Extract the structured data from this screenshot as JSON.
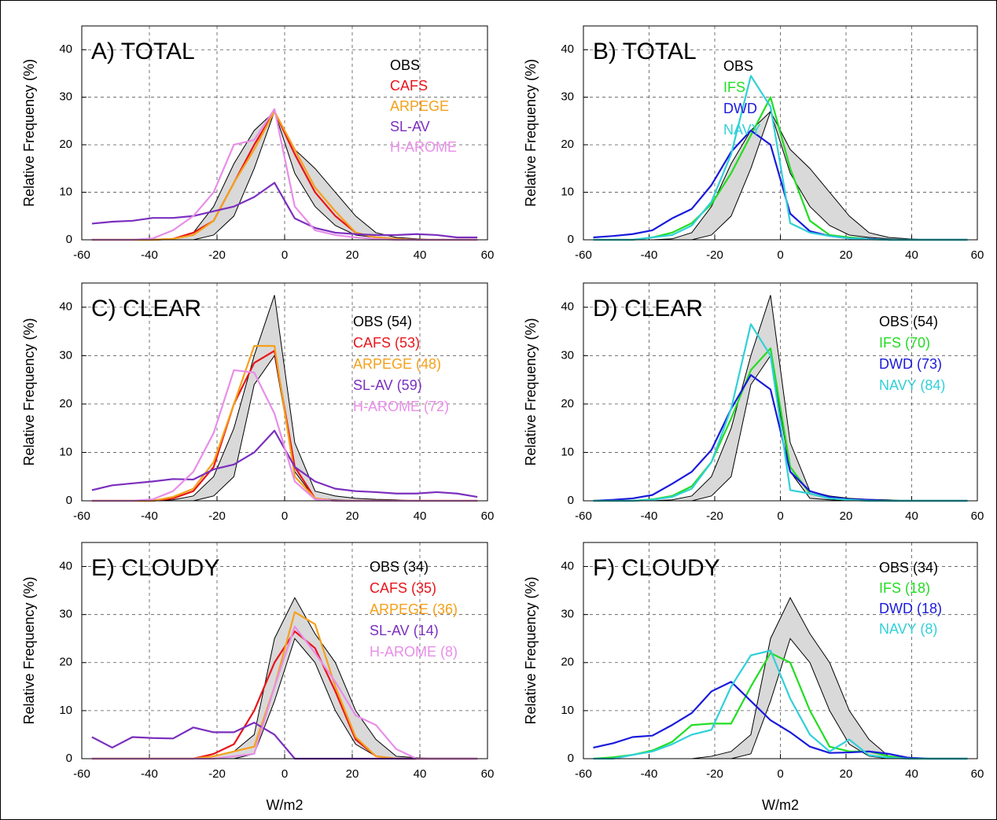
{
  "chart_data": [
    {
      "type": "line",
      "title": "A) TOTAL",
      "ylabel": "Relative Frequency (%)",
      "x": [
        -57,
        -51,
        -45,
        -39,
        -33,
        -27,
        -21,
        -15,
        -9,
        -3,
        3,
        9,
        15,
        21,
        27,
        33,
        39,
        45,
        51,
        57
      ],
      "xlim": [
        -60,
        60
      ],
      "xticks": [
        -60,
        -40,
        -20,
        0,
        20,
        40,
        60
      ],
      "ylim": [
        0,
        45
      ],
      "yticks": [
        0,
        10,
        20,
        30,
        40
      ],
      "grid": true,
      "series": [
        {
          "name": "OBS",
          "color": "#000000",
          "fill": "#d9d9d9",
          "low": [
            0,
            0,
            0,
            0,
            0,
            0,
            1,
            5,
            15,
            27,
            14,
            7,
            3,
            1,
            0.5,
            0.2,
            0,
            0,
            0,
            0
          ],
          "high": [
            0,
            0,
            0,
            0,
            0.2,
            1.5,
            7,
            16,
            23,
            27,
            19,
            15,
            10,
            5,
            1.5,
            0.5,
            0.2,
            0,
            0,
            0
          ]
        },
        {
          "name": "CAFS",
          "color": "#e8141b",
          "values": [
            0,
            0,
            0,
            0,
            0.2,
            1.5,
            4,
            12,
            20,
            27,
            18,
            10,
            5,
            1.5,
            0.5,
            0.2,
            0,
            0,
            0,
            0
          ]
        },
        {
          "name": "ARPEGE",
          "color": "#f5a01a",
          "values": [
            0,
            0,
            0,
            0,
            0.2,
            1,
            4,
            12,
            19,
            27,
            19,
            11,
            6,
            1.5,
            0.5,
            0.2,
            0,
            0,
            0,
            0
          ]
        },
        {
          "name": "SL-AV",
          "color": "#7b2fbe",
          "values": [
            3.4,
            3.8,
            4,
            4.6,
            4.6,
            5,
            6,
            7,
            9,
            12,
            4.5,
            2.5,
            1.5,
            1.2,
            1,
            1,
            1.2,
            1,
            0.5,
            0.5
          ]
        },
        {
          "name": "H-AROME",
          "color": "#e88ee8",
          "values": [
            0,
            0,
            0,
            0.3,
            2,
            5,
            10,
            20,
            21,
            27.5,
            7,
            2,
            1,
            0.5,
            0.2,
            0,
            0,
            0,
            0,
            0
          ]
        }
      ]
    },
    {
      "type": "line",
      "title": "B) TOTAL",
      "ylabel": "Relative Frequency (%)",
      "x": [
        -57,
        -51,
        -45,
        -39,
        -33,
        -27,
        -21,
        -15,
        -9,
        -3,
        3,
        9,
        15,
        21,
        27,
        33,
        39,
        45,
        51,
        57
      ],
      "xlim": [
        -60,
        60
      ],
      "xticks": [
        -60,
        -40,
        -20,
        0,
        20,
        40,
        60
      ],
      "ylim": [
        0,
        45
      ],
      "yticks": [
        0,
        10,
        20,
        30,
        40
      ],
      "grid": true,
      "series": [
        {
          "name": "OBS",
          "color": "#000000",
          "fill": "#d9d9d9",
          "low": [
            0,
            0,
            0,
            0,
            0,
            0,
            1,
            5,
            15,
            27,
            14,
            7,
            3,
            1,
            0.5,
            0.2,
            0,
            0,
            0,
            0
          ],
          "high": [
            0,
            0,
            0,
            0,
            0.2,
            1.5,
            7,
            16,
            23,
            27,
            19,
            15,
            10,
            5,
            1.5,
            0.5,
            0.2,
            0,
            0,
            0
          ]
        },
        {
          "name": "IFS",
          "color": "#22dd22",
          "values": [
            0,
            0,
            0,
            0.5,
            1.5,
            3.5,
            7.5,
            14,
            22,
            30,
            15,
            4,
            1,
            0.5,
            0.2,
            0,
            0,
            0,
            0,
            0
          ]
        },
        {
          "name": "DWD",
          "color": "#1a1adc",
          "values": [
            0.5,
            0.8,
            1.2,
            2,
            4.5,
            6.5,
            11.5,
            18.5,
            23,
            20,
            5.5,
            1.8,
            0.8,
            0.3,
            0.2,
            0,
            0,
            0,
            0,
            0
          ]
        },
        {
          "name": "NAVY",
          "color": "#30d0d8",
          "values": [
            0,
            0,
            0,
            0.5,
            1,
            3,
            8,
            18,
            34.5,
            28,
            3.5,
            1.5,
            0.8,
            0.3,
            0.1,
            0,
            0,
            0,
            0,
            0
          ]
        }
      ]
    },
    {
      "type": "line",
      "title": "C) CLEAR",
      "ylabel": "Relative Frequency (%)",
      "x": [
        -57,
        -51,
        -45,
        -39,
        -33,
        -27,
        -21,
        -15,
        -9,
        -3,
        3,
        9,
        15,
        21,
        27,
        33,
        39,
        45,
        51,
        57
      ],
      "xlim": [
        -60,
        60
      ],
      "xticks": [
        -60,
        -40,
        -20,
        0,
        20,
        40,
        60
      ],
      "ylim": [
        0,
        45
      ],
      "yticks": [
        0,
        10,
        20,
        30,
        40
      ],
      "grid": true,
      "series": [
        {
          "name": "OBS (54)",
          "color": "#000000",
          "fill": "#d9d9d9",
          "low": [
            0,
            0,
            0,
            0,
            0,
            0,
            1,
            5,
            24,
            30,
            6,
            0.5,
            0.2,
            0,
            0,
            0,
            0,
            0,
            0,
            0
          ],
          "high": [
            0,
            0,
            0,
            0,
            0.2,
            1,
            5,
            15,
            30,
            42.5,
            12,
            2,
            1,
            0.5,
            0.3,
            0.2,
            0,
            0,
            0,
            0
          ]
        },
        {
          "name": "CAFS (53)",
          "color": "#e8141b",
          "values": [
            0,
            0,
            0,
            0,
            0.5,
            2,
            7,
            20,
            28.5,
            31,
            7,
            0.5,
            0,
            0,
            0,
            0,
            0,
            0,
            0,
            0
          ]
        },
        {
          "name": "ARPEGE (48)",
          "color": "#f5a01a",
          "values": [
            0,
            0,
            0,
            0,
            0.8,
            2.5,
            8,
            20,
            32,
            32,
            5,
            0.5,
            0,
            0,
            0,
            0,
            0,
            0,
            0,
            0
          ]
        },
        {
          "name": "SL-AV (59)",
          "color": "#7b2fbe",
          "values": [
            2.2,
            3.2,
            3.6,
            4,
            4.5,
            4.4,
            6.5,
            7.5,
            10,
            14.5,
            7,
            4,
            2.5,
            2,
            1.8,
            1.5,
            1.5,
            1.8,
            1.5,
            0.8
          ]
        },
        {
          "name": "H-AROME (72)",
          "color": "#e88ee8",
          "values": [
            0,
            0,
            0,
            0.3,
            2,
            6,
            14,
            27,
            26.5,
            18,
            4,
            0.3,
            0,
            0,
            0,
            0,
            0,
            0,
            0,
            0
          ]
        }
      ]
    },
    {
      "type": "line",
      "title": "D) CLEAR",
      "ylabel": "Relative Frequency (%)",
      "x": [
        -57,
        -51,
        -45,
        -39,
        -33,
        -27,
        -21,
        -15,
        -9,
        -3,
        3,
        9,
        15,
        21,
        27,
        33,
        39,
        45,
        51,
        57
      ],
      "xlim": [
        -60,
        60
      ],
      "xticks": [
        -60,
        -40,
        -20,
        0,
        20,
        40,
        60
      ],
      "ylim": [
        0,
        45
      ],
      "yticks": [
        0,
        10,
        20,
        30,
        40
      ],
      "grid": true,
      "series": [
        {
          "name": "OBS (54)",
          "color": "#000000",
          "fill": "#d9d9d9",
          "low": [
            0,
            0,
            0,
            0,
            0,
            0,
            1,
            5,
            24,
            30,
            6,
            0.5,
            0.2,
            0,
            0,
            0,
            0,
            0,
            0,
            0
          ],
          "high": [
            0,
            0,
            0,
            0,
            0.2,
            1,
            5,
            15,
            30,
            42.5,
            12,
            2,
            1,
            0.5,
            0.3,
            0.2,
            0,
            0,
            0,
            0
          ]
        },
        {
          "name": "IFS (70)",
          "color": "#22dd22",
          "values": [
            0,
            0,
            0,
            0.3,
            1,
            3,
            8,
            17,
            27,
            31.5,
            7,
            1.5,
            0.5,
            0.2,
            0,
            0,
            0,
            0,
            0,
            0
          ]
        },
        {
          "name": "DWD (73)",
          "color": "#1a1adc",
          "values": [
            0,
            0.2,
            0.5,
            1.2,
            3.5,
            6,
            10.5,
            19,
            26,
            23,
            6,
            2,
            0.8,
            0.3,
            0.2,
            0,
            0,
            0,
            0,
            0
          ]
        },
        {
          "name": "NAVY (84)",
          "color": "#30d0d8",
          "values": [
            0,
            0,
            0,
            0.2,
            0.8,
            2.5,
            8,
            19,
            36.5,
            30,
            2.2,
            1.5,
            0.5,
            0.2,
            0,
            0,
            0,
            0,
            0,
            0
          ]
        }
      ]
    },
    {
      "type": "line",
      "title": "E) CLOUDY",
      "ylabel": "Relative Frequency (%)",
      "xlabel": "W/m2",
      "x": [
        -57,
        -51,
        -45,
        -39,
        -33,
        -27,
        -21,
        -15,
        -9,
        -3,
        3,
        9,
        15,
        21,
        27,
        33,
        39,
        45,
        51,
        57
      ],
      "xlim": [
        -60,
        60
      ],
      "xticks": [
        -60,
        -40,
        -20,
        0,
        20,
        40,
        60
      ],
      "ylim": [
        0,
        45
      ],
      "yticks": [
        0,
        10,
        20,
        30,
        40
      ],
      "grid": true,
      "series": [
        {
          "name": "OBS (34)",
          "color": "#000000",
          "fill": "#d9d9d9",
          "low": [
            0,
            0,
            0,
            0,
            0,
            0,
            0,
            0,
            1,
            12,
            25,
            20,
            10,
            3,
            0.5,
            0,
            0,
            0,
            0,
            0
          ],
          "high": [
            0,
            0,
            0,
            0,
            0,
            0,
            0.5,
            1.5,
            5,
            25,
            33.5,
            26,
            20,
            10,
            4,
            0.5,
            0.2,
            0,
            0,
            0
          ]
        },
        {
          "name": "CAFS (35)",
          "color": "#e8141b",
          "values": [
            0,
            0,
            0,
            0,
            0,
            0,
            1,
            3,
            10,
            20,
            26.5,
            23,
            14,
            4,
            0.5,
            0,
            0,
            0,
            0,
            0
          ]
        },
        {
          "name": "ARPEGE (36)",
          "color": "#f5a01a",
          "values": [
            0,
            0,
            0,
            0,
            0,
            0,
            0.5,
            1.5,
            2.5,
            15,
            30.5,
            28,
            15,
            4.5,
            0.5,
            0,
            0,
            0,
            0,
            0
          ]
        },
        {
          "name": "SL-AV (14)",
          "color": "#7b2fbe",
          "values": [
            4.5,
            2.3,
            4.5,
            4.3,
            4.2,
            6.5,
            5.5,
            5.5,
            7.5,
            5,
            0,
            0,
            0,
            0,
            0,
            0,
            0,
            0,
            0,
            0
          ]
        },
        {
          "name": "H-AROME (8)",
          "color": "#e88ee8",
          "values": [
            0,
            0,
            0,
            0,
            0,
            0,
            0,
            0.5,
            1,
            15,
            27.5,
            22,
            16,
            9,
            7,
            2,
            0,
            0,
            0,
            0
          ]
        }
      ]
    },
    {
      "type": "line",
      "title": "F) CLOUDY",
      "ylabel": "Relative Frequency (%)",
      "xlabel": "W/m2",
      "x": [
        -57,
        -51,
        -45,
        -39,
        -33,
        -27,
        -21,
        -15,
        -9,
        -3,
        3,
        9,
        15,
        21,
        27,
        33,
        39,
        45,
        51,
        57
      ],
      "xlim": [
        -60,
        60
      ],
      "xticks": [
        -60,
        -40,
        -20,
        0,
        20,
        40,
        60
      ],
      "ylim": [
        0,
        45
      ],
      "yticks": [
        0,
        10,
        20,
        30,
        40
      ],
      "grid": true,
      "series": [
        {
          "name": "OBS (34)",
          "color": "#000000",
          "fill": "#d9d9d9",
          "low": [
            0,
            0,
            0,
            0,
            0,
            0,
            0,
            0,
            1,
            12,
            25,
            20,
            10,
            3,
            0.5,
            0,
            0,
            0,
            0,
            0
          ],
          "high": [
            0,
            0,
            0,
            0,
            0,
            0,
            0.5,
            1.5,
            5,
            25,
            33.5,
            26,
            20,
            10,
            4,
            0.5,
            0.2,
            0,
            0,
            0
          ]
        },
        {
          "name": "IFS (18)",
          "color": "#22dd22",
          "values": [
            0,
            0.3,
            0.8,
            1.7,
            3.5,
            7,
            7.3,
            7.3,
            15,
            22,
            20,
            10,
            2.5,
            1.5,
            1.5,
            0.5,
            0,
            0,
            0,
            0
          ]
        },
        {
          "name": "DWD (18)",
          "color": "#1a1adc",
          "values": [
            2.3,
            3.2,
            4.5,
            4.8,
            7,
            9.5,
            14,
            16,
            12,
            8,
            5.5,
            2.5,
            1.2,
            1.3,
            1.5,
            1,
            0.2,
            0,
            0,
            0
          ]
        },
        {
          "name": "NAVY (8)",
          "color": "#30d0d8",
          "values": [
            0,
            0,
            0.8,
            1.5,
            3,
            5,
            6,
            15,
            21.5,
            22.5,
            12.5,
            5,
            1.5,
            4,
            0.7,
            0.2,
            0,
            0,
            0,
            0
          ]
        }
      ]
    }
  ]
}
